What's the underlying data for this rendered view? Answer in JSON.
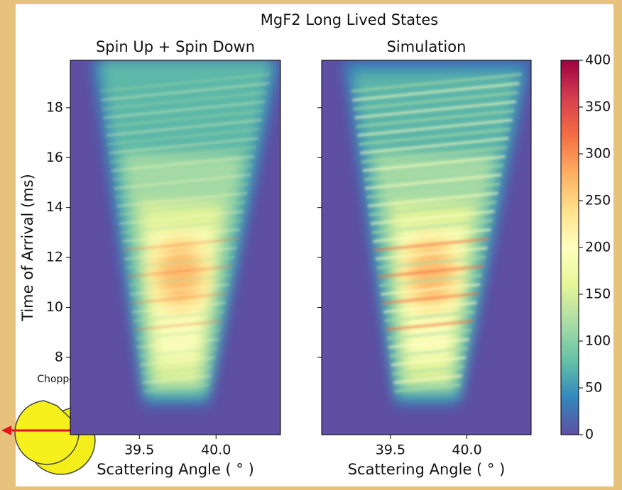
{
  "title": "MgF2 Long Lived States",
  "annotation": "Chopper",
  "chart_data": [
    {
      "type": "heatmap",
      "title": "Spin Up + Spin Down",
      "xlabel": "Scattering Angle ( ° )",
      "ylabel": "Time of Arrival (ms)",
      "xlim": [
        39.05,
        40.42
      ],
      "xticks": [
        39.5,
        {
          "value": 40,
          "label": "40.0"
        }
      ],
      "ylim": [
        4.9,
        19.9
      ],
      "yticks": [
        8,
        10,
        12,
        14,
        16,
        18
      ]
    },
    {
      "type": "heatmap",
      "title": "Simulation",
      "xlabel": "Scattering Angle ( ° )",
      "xlim": [
        39.05,
        40.42
      ],
      "xticks": [
        39.5,
        {
          "value": 40,
          "label": "40.0"
        }
      ],
      "ylim": [
        4.9,
        19.9
      ],
      "yticks": [
        8,
        10,
        12,
        14,
        16,
        18
      ],
      "shared_y": true,
      "colorbar": {
        "lim": [
          0,
          400
        ],
        "ticks": [
          0,
          50,
          100,
          150,
          200,
          250,
          300,
          350,
          400
        ],
        "colormap": [
          "#5e4fa2",
          "#3288bd",
          "#66c2a5",
          "#abdda4",
          "#e6f598",
          "#ffffbf",
          "#fee08b",
          "#fdae61",
          "#f46d43",
          "#d53e4f",
          "#9e0142"
        ]
      }
    }
  ]
}
